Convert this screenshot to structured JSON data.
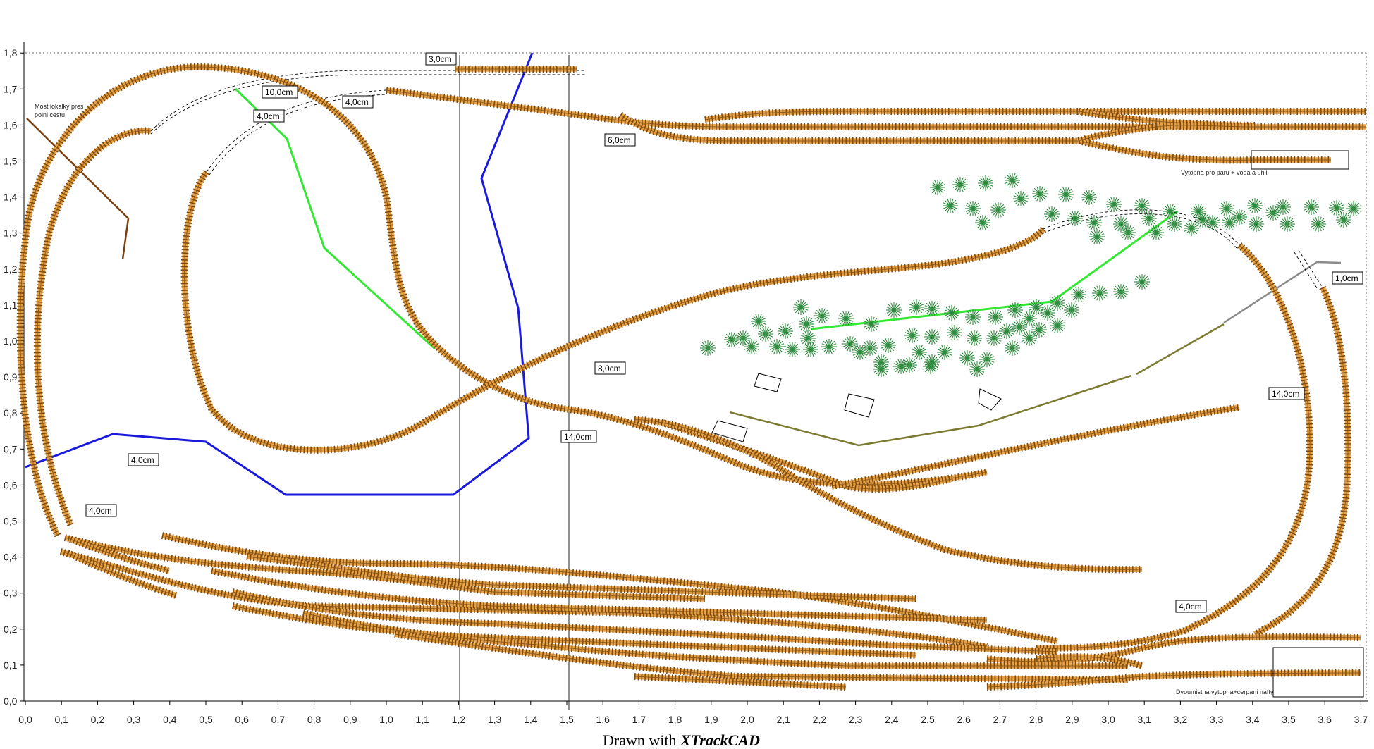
{
  "footer": {
    "prefix": "Drawn with ",
    "brand": "XTrackCAD"
  },
  "axes": {
    "x_ticks": [
      "0,0",
      "0,1",
      "0,2",
      "0,3",
      "0,4",
      "0,5",
      "0,6",
      "0,7",
      "0,8",
      "0,9",
      "1,0",
      "1,1",
      "1,2",
      "1,3",
      "1,4",
      "1,5",
      "1,6",
      "1,7",
      "1,8",
      "1,9",
      "2,0",
      "2,1",
      "2,2",
      "2,3",
      "2,4",
      "2,5",
      "2,6",
      "2,7",
      "2,8",
      "2,9",
      "3,0",
      "3,1",
      "3,2",
      "3,3",
      "3,4",
      "3,5",
      "3,6",
      "3,7"
    ],
    "y_ticks": [
      "0,0",
      "0,1",
      "0,2",
      "0,3",
      "0,4",
      "0,5",
      "0,6",
      "0,7",
      "0,8",
      "0,9",
      "1,0",
      "1,1",
      "1,2",
      "1,3",
      "1,4",
      "1,5",
      "1,6",
      "1,7",
      "1,8"
    ]
  },
  "labels": [
    {
      "text": "3,0cm"
    },
    {
      "text": "10,0cm"
    },
    {
      "text": "4,0cm"
    },
    {
      "text": "4,0cm"
    },
    {
      "text": "6,0cm"
    },
    {
      "text": "8,0cm"
    },
    {
      "text": "14,0cm"
    },
    {
      "text": "14,0cm"
    },
    {
      "text": "1,0cm"
    },
    {
      "text": "4,0cm"
    },
    {
      "text": "4,0cm"
    },
    {
      "text": "4,0cm"
    }
  ],
  "notes": {
    "bridge_line1": "Most lokalky pres",
    "bridge_line2": "polni cestu",
    "depot_top": "Vytopna pro paru + voda a uhli",
    "depot_bottom": "Dvoumistna vytopna+cerpani nafty"
  },
  "colors": {
    "track_bed": "#e8a040",
    "track_ties": "#7a4a12",
    "blue_line": "#1a1adc",
    "green_line": "#33e833",
    "olive_line": "#7a7a30",
    "brown_line": "#7a4010",
    "tree": "#2e8b3d"
  }
}
